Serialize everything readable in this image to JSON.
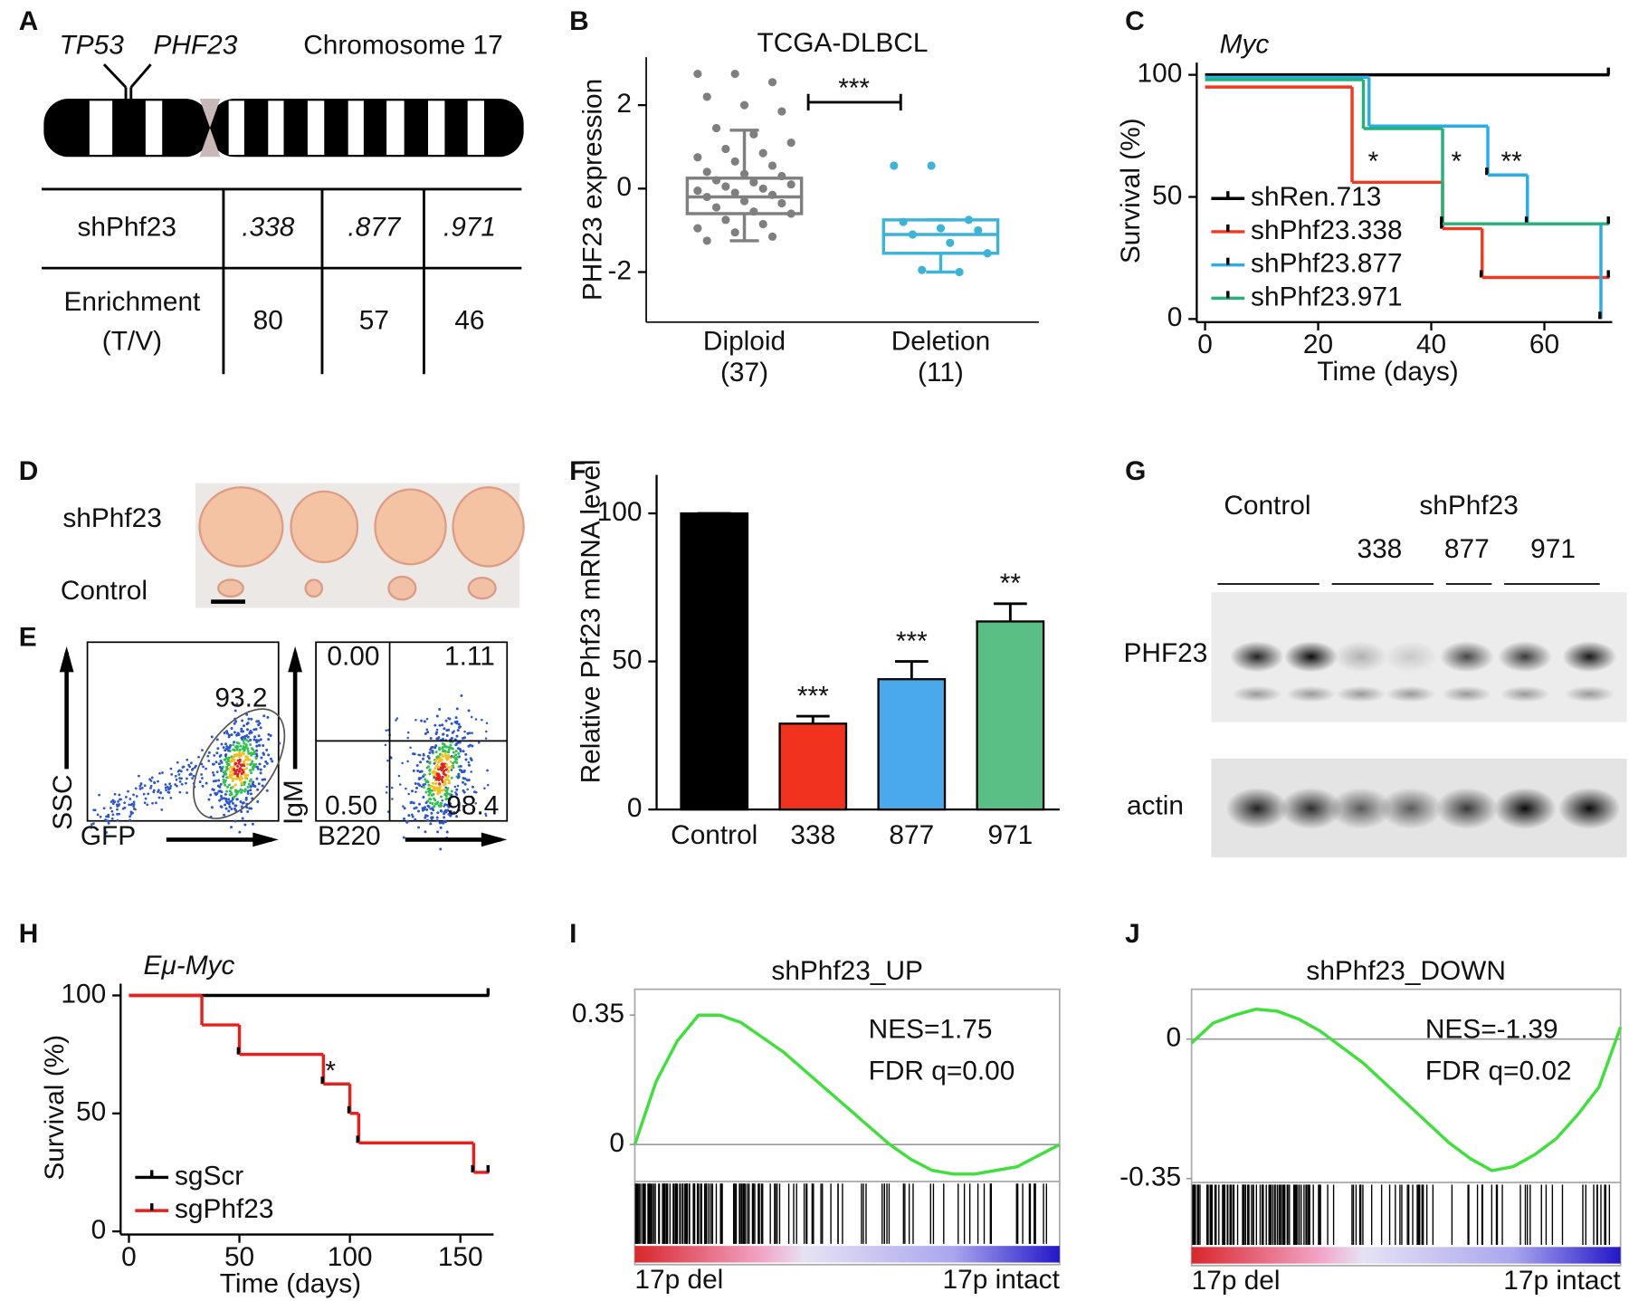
{
  "panel_labels": [
    "A",
    "B",
    "C",
    "D",
    "E",
    "F",
    "G",
    "H",
    "I",
    "J"
  ],
  "panel_a": {
    "genes": [
      "TP53",
      "PHF23"
    ],
    "chromosome": "Chromosome 17",
    "row_label": "shPhf23",
    "columns": [
      ".338",
      ".877",
      ".971"
    ],
    "enrichment_label": [
      "Enrichment",
      "(T/V)"
    ],
    "enrichment": [
      80,
      57,
      46
    ]
  },
  "panel_d": {
    "labels": [
      "shPhf23",
      "Control"
    ]
  },
  "panel_e": {
    "gfp_plot": {
      "gate": "93.2",
      "y_label": "SSC",
      "x_label": "GFP"
    },
    "b220_plot": {
      "quadrants": [
        "0.00",
        "1.11",
        "0.50",
        "98.4"
      ],
      "y_label": "IgM",
      "x_label": "B220"
    }
  },
  "panel_g": {
    "groups": [
      "Control",
      "shPhf23"
    ],
    "lanes": [
      "338",
      "877",
      "971"
    ],
    "bands": [
      "PHF23",
      "actin"
    ]
  },
  "chart_data": [
    {
      "type": "box",
      "title": "TCGA-DLBCL",
      "y_label": "PHF23 expression",
      "categories": [
        "Diploid",
        "Deletion"
      ],
      "group_sizes": [
        "(37)",
        "(11)"
      ],
      "colors": [
        "#7f7f7f",
        "#3cb4d8"
      ],
      "boxes": [
        {
          "whislo": -1.25,
          "q1": -0.6,
          "med": -0.2,
          "q3": 0.25,
          "whishi": 1.4
        },
        {
          "whislo": -2.0,
          "q1": -1.55,
          "med": -1.1,
          "q3": -0.75,
          "whishi": -0.75
        }
      ],
      "points": [
        [
          2.75,
          2.75,
          2.55,
          2.2,
          2.0,
          1.85,
          1.45,
          1.3,
          1.1,
          0.95,
          0.85,
          0.75,
          0.65,
          0.55,
          0.4,
          0.35,
          0.3,
          0.2,
          0.15,
          0.1,
          0.05,
          0,
          -0.05,
          -0.1,
          -0.15,
          -0.2,
          -0.3,
          -0.35,
          -0.45,
          -0.55,
          -0.6,
          -0.75,
          -0.85,
          -0.95,
          -1.05,
          -1.15,
          -1.25
        ],
        [
          0.55,
          0.55,
          -0.75,
          -0.8,
          -0.95,
          -1.0,
          -1.1,
          -1.3,
          -1.55,
          -1.95,
          -2.0
        ]
      ],
      "ylim": [
        -3.2,
        3.15
      ],
      "yticks": [
        -2,
        0,
        2
      ],
      "annotation": "***"
    },
    {
      "type": "survival",
      "title": "Myc",
      "x_label": "Time (days)",
      "y_label": "Survival (%)",
      "xlim": [
        0,
        72
      ],
      "xticks": [
        0,
        20,
        40,
        60
      ],
      "ylim": [
        0,
        105
      ],
      "yticks": [
        0,
        50,
        100
      ],
      "legend": "lower left",
      "series": [
        {
          "name": "shRen.713",
          "color": "#000000",
          "x": [
            0,
            71.5
          ],
          "values": [
            100,
            100
          ]
        },
        {
          "name": "shPhf23.338",
          "color": "#f03a1f",
          "x": [
            0,
            26,
            42,
            49,
            71.5
          ],
          "values": [
            95,
            56,
            37,
            17,
            17
          ]
        },
        {
          "name": "shPhf23.877",
          "color": "#27aee8",
          "x": [
            0,
            29,
            50,
            57,
            70
          ],
          "values": [
            99,
            79,
            59,
            39,
            0
          ]
        },
        {
          "name": "shPhf23.971",
          "color": "#25b27a",
          "x": [
            0,
            28,
            42,
            71.5
          ],
          "values": [
            98,
            78,
            39,
            39
          ]
        }
      ],
      "annotations": [
        "*",
        "*",
        "**"
      ]
    },
    {
      "type": "bar",
      "y_label": "Relative Phf23 mRNA level",
      "categories": [
        "Control",
        "338",
        "877",
        "971"
      ],
      "values": [
        100,
        29,
        44,
        63.5
      ],
      "errors": [
        0,
        2.5,
        6,
        6
      ],
      "colors": [
        "#000000",
        "#f0321e",
        "#4aa8ec",
        "#5abf84"
      ],
      "significance": [
        null,
        "***",
        "***",
        "**"
      ],
      "ylim": [
        0,
        113
      ],
      "yticks": [
        0,
        50,
        100
      ]
    },
    {
      "type": "survival",
      "title": "Eμ-Myc",
      "x_label": "Time (days)",
      "y_label": "Survival (%)",
      "xlim": [
        0,
        165
      ],
      "xticks": [
        0,
        50,
        100,
        150
      ],
      "ylim": [
        0,
        105
      ],
      "yticks": [
        0,
        50,
        100
      ],
      "legend": "lower left",
      "series": [
        {
          "name": "sgScr",
          "color": "#000000",
          "x": [
            0,
            163
          ],
          "values": [
            100,
            100
          ]
        },
        {
          "name": "sgPhf23",
          "color": "#e8201c",
          "x": [
            0,
            33,
            50,
            88,
            100,
            104,
            156,
            163
          ],
          "values": [
            100,
            87.5,
            75,
            62.5,
            50,
            37.5,
            25,
            25
          ]
        }
      ],
      "annotations": [
        "*"
      ]
    },
    {
      "type": "enrichment",
      "title": "shPhf23_UP",
      "annotations": [
        "NES=1.75",
        "FDR q=0.00"
      ],
      "color": "#3ee03a",
      "values": [
        0,
        0.17,
        0.28,
        0.35,
        0.35,
        0.33,
        0.29,
        0.25,
        0.2,
        0.15,
        0.1,
        0.05,
        0.0,
        -0.04,
        -0.07,
        -0.08,
        -0.08,
        -0.07,
        -0.06,
        -0.03,
        0.0
      ],
      "ylim": [
        -0.1,
        0.42
      ],
      "yticks": [
        0,
        0.35
      ],
      "x_labels": [
        "17p del",
        "17p intact"
      ]
    },
    {
      "type": "enrichment",
      "title": "shPhf23_DOWN",
      "annotations": [
        "NES=-1.39",
        "FDR q=0.02"
      ],
      "color": "#3ee03a",
      "values": [
        -0.01,
        0.04,
        0.06,
        0.075,
        0.07,
        0.05,
        0.02,
        -0.02,
        -0.06,
        -0.11,
        -0.16,
        -0.21,
        -0.26,
        -0.3,
        -0.33,
        -0.32,
        -0.29,
        -0.25,
        -0.19,
        -0.12,
        0.03
      ],
      "ylim": [
        -0.36,
        0.125
      ],
      "yticks": [
        -0.35,
        0
      ],
      "x_labels": [
        "17p del",
        "17p intact"
      ]
    }
  ]
}
